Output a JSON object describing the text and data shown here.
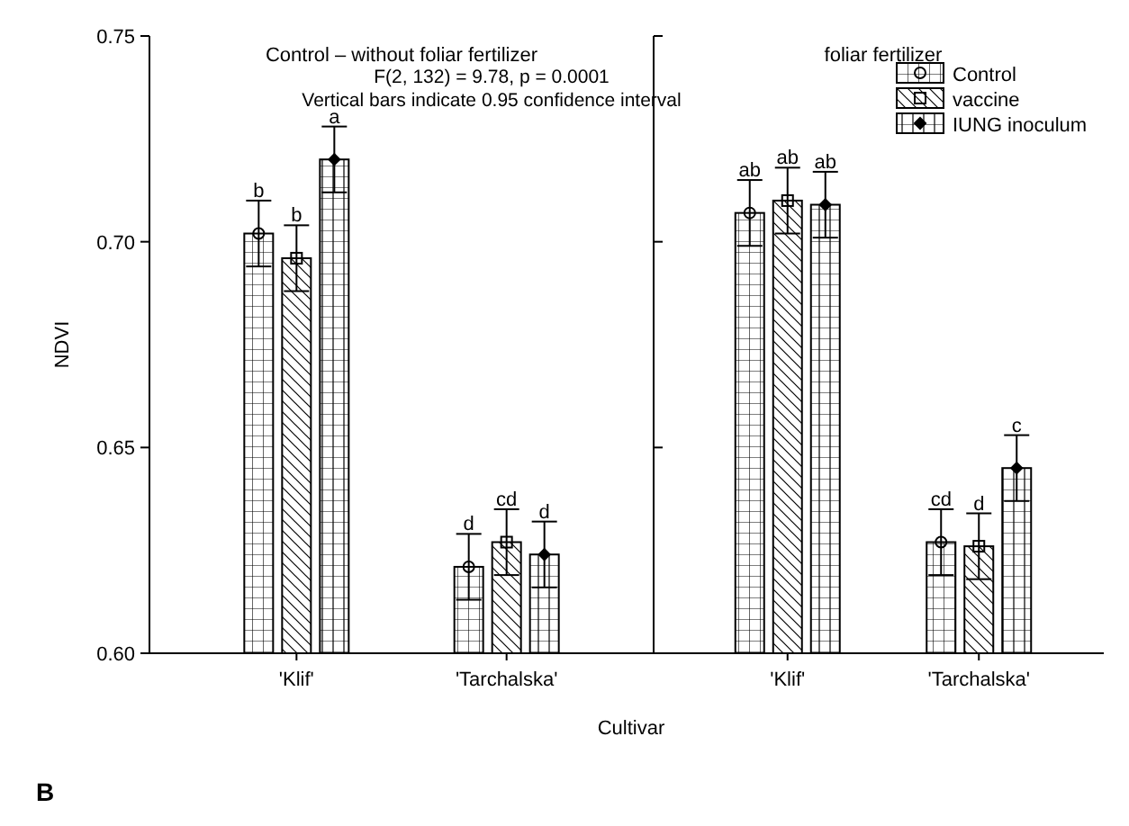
{
  "chart_data": [
    {
      "type": "bar",
      "title": "Control – without foliar fertilizer",
      "ylabel": "NDVI",
      "xlabel": "Cultivar",
      "categories": [
        "'Klif'",
        "'Tarchalska'"
      ],
      "ylim": [
        0.6,
        0.75
      ],
      "yticks": [
        {
          "value": 0.6,
          "label": "0.60"
        },
        {
          "value": 0.65,
          "label": "0.65"
        },
        {
          "value": 0.7,
          "label": "0.70"
        },
        {
          "value": 0.75,
          "label": "0.75"
        }
      ],
      "annotations": [
        "F(2, 132) = 9.78, p = 0.0001",
        "Vertical bars indicate 0.95 confidence interval",
        "B"
      ],
      "legend": false,
      "series": [
        {
          "color": "#000000",
          "marker": "circle",
          "values": [
            0.702,
            0.621
          ],
          "errors": [
            0.008,
            0.008
          ],
          "value_labels": [
            "b",
            "d"
          ]
        },
        {
          "color": "#000000",
          "marker": "square",
          "values": [
            0.696,
            0.627
          ],
          "errors": [
            0.008,
            0.008
          ],
          "value_labels": [
            "b",
            "cd"
          ]
        },
        {
          "color": "#000000",
          "marker": "diamond",
          "values": [
            0.72,
            0.624
          ],
          "errors": [
            0.008,
            0.008
          ],
          "value_labels": [
            "a",
            "d"
          ]
        }
      ]
    },
    {
      "type": "bar",
      "title": "foliar fertilizer",
      "categories": [
        "'Klif'",
        "'Tarchalska'"
      ],
      "ylim": [
        0.6,
        0.75
      ],
      "yticks": [
        0.6,
        0.65,
        0.7,
        0.75
      ],
      "tick_labels": "x",
      "legend": "top right",
      "series": [
        {
          "name": "Control",
          "color": "#000000",
          "marker": "circle",
          "values": [
            0.707,
            0.627
          ],
          "errors": [
            0.008,
            0.008
          ],
          "value_labels": [
            "ab",
            "cd"
          ]
        },
        {
          "name": "vaccine",
          "color": "#000000",
          "marker": "square",
          "values": [
            0.71,
            0.626
          ],
          "errors": [
            0.008,
            0.008
          ],
          "value_labels": [
            "ab",
            "d"
          ]
        },
        {
          "name": "IUNG inoculum",
          "color": "#000000",
          "marker": "diamond",
          "values": [
            0.709,
            0.645
          ],
          "errors": [
            0.008,
            0.008
          ],
          "value_labels": [
            "ab",
            "c"
          ]
        }
      ]
    }
  ]
}
